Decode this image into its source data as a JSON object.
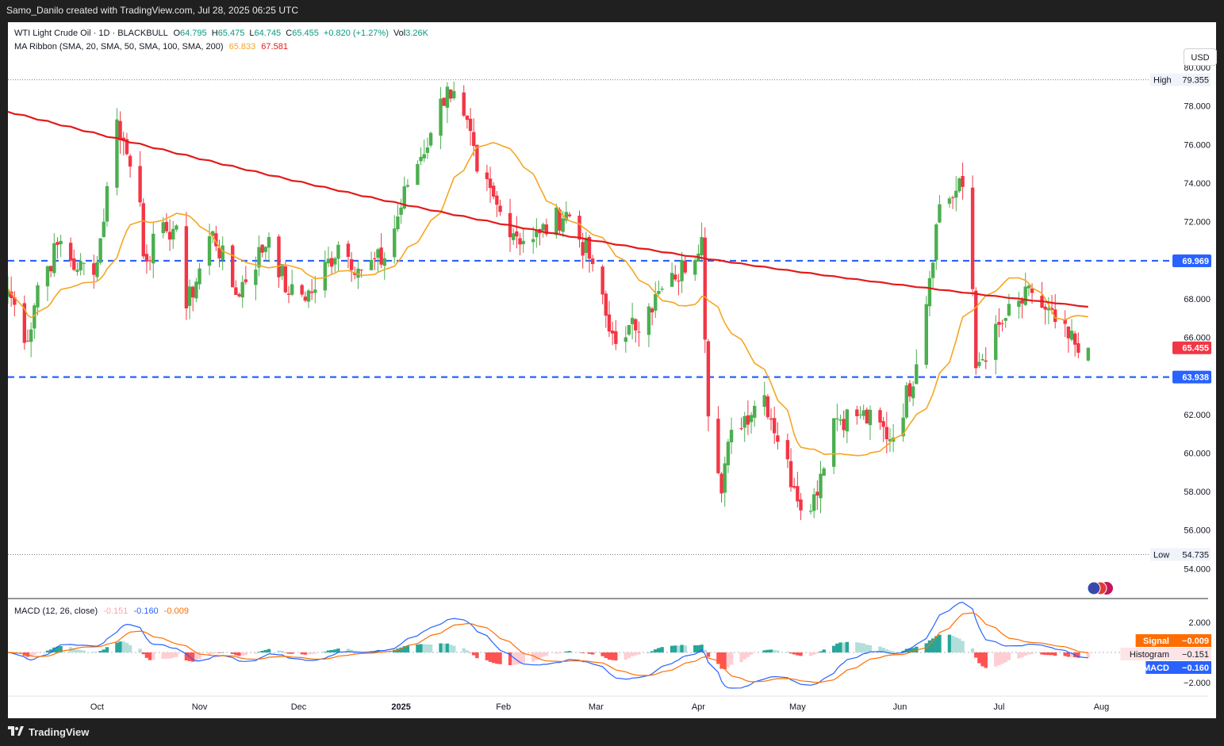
{
  "header": {
    "credit": "Samo_Danilo created with TradingView.com, Jul 28, 2025 06:25 UTC"
  },
  "legend": {
    "symbol": "WTI Light Crude Oil · 1D · BLACKBULL",
    "o_label": "O",
    "o_value": "64.795",
    "h_label": "H",
    "h_value": "65.475",
    "l_label": "L",
    "l_value": "64.745",
    "c_label": "C",
    "c_value": "65.455",
    "change": "+0.820 (+1.27%)",
    "vol_label": "Vol",
    "vol_value": "3.26K",
    "ma_label": "MA Ribbon (SMA, 20, SMA, 50, SMA, 100, SMA, 200)",
    "ma1_value": "65.833",
    "ma2_value": "67.581"
  },
  "currency_button": "USD",
  "price_axis": {
    "ticks": [
      "80.000",
      "78.000",
      "76.000",
      "74.000",
      "72.000",
      "70.000",
      "68.000",
      "66.000",
      "64.000",
      "62.000",
      "60.000",
      "58.000",
      "56.000",
      "54.000"
    ],
    "high_label": "High",
    "high_value": "79.355",
    "low_label": "Low",
    "low_value": "54.735",
    "level_upper": "69.969",
    "level_lower": "63.938",
    "last_price": "65.455"
  },
  "time_axis": {
    "labels": [
      "Oct",
      "Nov",
      "Dec",
      "2025",
      "Feb",
      "Mar",
      "Apr",
      "May",
      "Jun",
      "Jul",
      "Aug"
    ]
  },
  "macd_panel": {
    "label": "MACD (12, 26, close)",
    "v1": "-0.151",
    "v2": "-0.160",
    "v3": "-0.009",
    "ticks": [
      "2.000",
      "−2.000"
    ],
    "signal_label": "Signal",
    "signal_value": "−0.009",
    "histogram_label": "Histogram",
    "histogram_value": "−0.151",
    "macd_label": "MACD",
    "macd_value": "−0.160"
  },
  "footer": {
    "brand": "TradingView"
  },
  "colors": {
    "bull": "#4caf50",
    "bear": "#f23645",
    "sma20": "#f5a623",
    "sma200": "#e21b1b",
    "level": "#2962ff",
    "macd_line": "#2962ff",
    "signal_line": "#ff6d00",
    "hist_pos_strong": "#26a69a",
    "hist_pos_weak": "#b2dfdb",
    "hist_neg_strong": "#ff5252",
    "hist_neg_weak": "#ffcdd2"
  },
  "chart_data": [
    {
      "type": "candlestick",
      "title": "WTI Light Crude Oil · 1D · BLACKBULL",
      "ylim": [
        53.5,
        80.5
      ],
      "x_range": [
        "2024-09-04",
        "2025-08-04"
      ],
      "ohlc_anchors": [
        {
          "date": "2024-09-04",
          "close": 68.5
        },
        {
          "date": "2024-09-10",
          "close": 65.8
        },
        {
          "date": "2024-09-13",
          "close": 68.7
        },
        {
          "date": "2024-09-20",
          "close": 71.0
        },
        {
          "date": "2024-09-25",
          "close": 69.5
        },
        {
          "date": "2024-10-01",
          "close": 69.9
        },
        {
          "date": "2024-10-07",
          "close": 77.3
        },
        {
          "date": "2024-10-10",
          "close": 75.5
        },
        {
          "date": "2024-10-14",
          "close": 73.0
        },
        {
          "date": "2024-10-15",
          "close": 70.2
        },
        {
          "date": "2024-10-22",
          "close": 71.5
        },
        {
          "date": "2024-10-25",
          "close": 71.8
        },
        {
          "date": "2024-10-28",
          "close": 67.5
        },
        {
          "date": "2024-11-05",
          "close": 71.5
        },
        {
          "date": "2024-11-12",
          "close": 68.2
        },
        {
          "date": "2024-11-22",
          "close": 71.2
        },
        {
          "date": "2024-11-28",
          "close": 68.2
        },
        {
          "date": "2024-12-05",
          "close": 68.3
        },
        {
          "date": "2024-12-13",
          "close": 70.8
        },
        {
          "date": "2024-12-20",
          "close": 69.5
        },
        {
          "date": "2024-12-27",
          "close": 70.1
        },
        {
          "date": "2025-01-03",
          "close": 73.9
        },
        {
          "date": "2025-01-10",
          "close": 76.6
        },
        {
          "date": "2025-01-15",
          "close": 79.0
        },
        {
          "date": "2025-01-20",
          "close": 77.5
        },
        {
          "date": "2025-01-24",
          "close": 74.6
        },
        {
          "date": "2025-01-31",
          "close": 72.5
        },
        {
          "date": "2025-02-07",
          "close": 71.0
        },
        {
          "date": "2025-02-12",
          "close": 71.4
        },
        {
          "date": "2025-02-20",
          "close": 72.5
        },
        {
          "date": "2025-02-28",
          "close": 69.8
        },
        {
          "date": "2025-03-05",
          "close": 66.3
        },
        {
          "date": "2025-03-10",
          "close": 66.0
        },
        {
          "date": "2025-03-17",
          "close": 67.6
        },
        {
          "date": "2025-03-25",
          "close": 69.0
        },
        {
          "date": "2025-04-02",
          "close": 71.2
        },
        {
          "date": "2025-04-04",
          "close": 61.9
        },
        {
          "date": "2025-04-08",
          "close": 57.9
        },
        {
          "date": "2025-04-11",
          "close": 61.2
        },
        {
          "date": "2025-04-21",
          "close": 63.0
        },
        {
          "date": "2025-04-30",
          "close": 58.2
        },
        {
          "date": "2025-05-05",
          "close": 57.0
        },
        {
          "date": "2025-05-12",
          "close": 61.8
        },
        {
          "date": "2025-05-20",
          "close": 62.0
        },
        {
          "date": "2025-05-30",
          "close": 60.8
        },
        {
          "date": "2025-06-06",
          "close": 64.6
        },
        {
          "date": "2025-06-13",
          "close": 72.9
        },
        {
          "date": "2025-06-20",
          "close": 73.8
        },
        {
          "date": "2025-06-23",
          "close": 68.5
        },
        {
          "date": "2025-06-24",
          "close": 64.4
        },
        {
          "date": "2025-07-03",
          "close": 67.0
        },
        {
          "date": "2025-07-11",
          "close": 68.3
        },
        {
          "date": "2025-07-18",
          "close": 66.8
        },
        {
          "date": "2025-07-25",
          "close": 65.2
        },
        {
          "date": "2025-07-28",
          "open": 64.795,
          "high": 65.475,
          "low": 64.745,
          "close": 65.455
        }
      ],
      "high": 79.355,
      "low": 54.735,
      "horizontal_levels": [
        69.969,
        63.938
      ],
      "series": [
        {
          "name": "SMA 20",
          "last": 65.833
        },
        {
          "name": "SMA 200",
          "last": 67.581
        }
      ]
    },
    {
      "type": "line",
      "title": "MACD (12, 26, close)",
      "ylim": [
        -2.6,
        2.6
      ],
      "series": [
        {
          "name": "MACD",
          "last": -0.16
        },
        {
          "name": "Signal",
          "last": -0.009
        },
        {
          "name": "Histogram",
          "last": -0.151
        }
      ]
    }
  ]
}
